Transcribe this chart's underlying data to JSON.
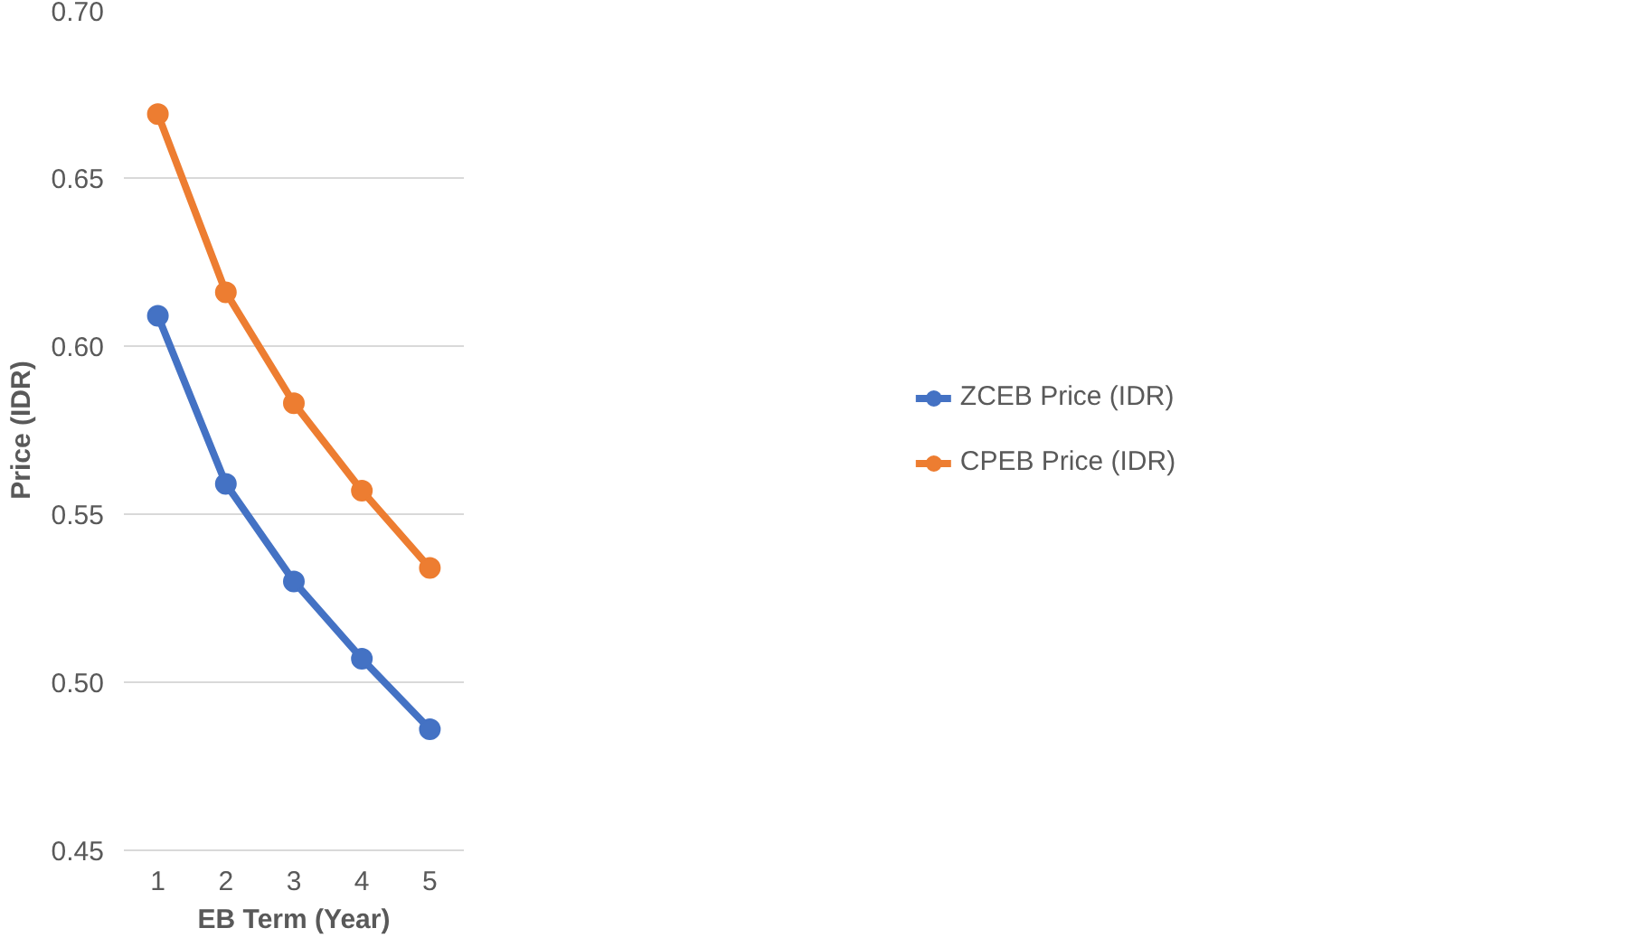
{
  "chart_data": {
    "type": "line",
    "xlabel": "EB Term (Year)",
    "ylabel": "Price (IDR)",
    "categories": [
      "1",
      "2",
      "3",
      "4",
      "5"
    ],
    "series": [
      {
        "name": "ZCEB Price (IDR)",
        "color": "#4472c4",
        "values": [
          0.609,
          0.559,
          0.53,
          0.507,
          0.486
        ]
      },
      {
        "name": "CPEB Price (IDR)",
        "color": "#ed7d31",
        "values": [
          0.669,
          0.616,
          0.583,
          0.557,
          0.534
        ]
      }
    ],
    "ylim": [
      0.45,
      0.7
    ],
    "yticks": [
      {
        "value": 0.45,
        "label": "0.45"
      },
      {
        "value": 0.5,
        "label": "0.50"
      },
      {
        "value": 0.55,
        "label": "0.55"
      },
      {
        "value": 0.6,
        "label": "0.60"
      },
      {
        "value": 0.65,
        "label": "0.65"
      },
      {
        "value": 0.7,
        "label": "0.70"
      }
    ],
    "grid": "y",
    "legend": "right",
    "marker": "circle",
    "line_style": "solid"
  }
}
